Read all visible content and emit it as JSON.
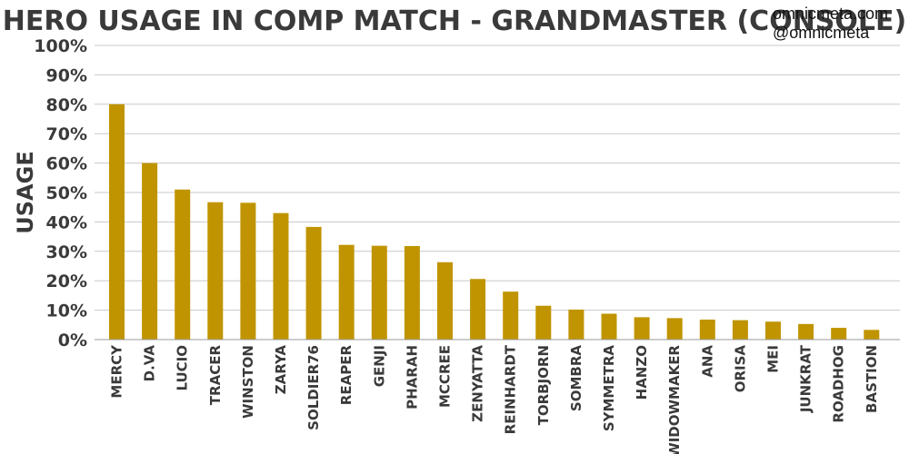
{
  "chart_data": {
    "type": "bar",
    "title": "HERO USAGE IN COMP MATCH - GRANDMASTER (CONSOLE)",
    "xlabel": "",
    "ylabel": "USAGE",
    "ylim": [
      0,
      100
    ],
    "yticks": [
      "0%",
      "10%",
      "20%",
      "30%",
      "40%",
      "50%",
      "60%",
      "70%",
      "80%",
      "90%",
      "100%"
    ],
    "categories": [
      "MERCY",
      "D.VA",
      "LUCIO",
      "TRACER",
      "WINSTON",
      "ZARYA",
      "SOLDIER76",
      "REAPER",
      "GENJI",
      "PHARAH",
      "MCCREE",
      "ZENYATTA",
      "REINHARDT",
      "TORBJORN",
      "SOMBRA",
      "SYMMETRA",
      "HANZO",
      "WIDOWMAKER",
      "ANA",
      "ORISA",
      "MEI",
      "JUNKRAT",
      "ROADHOG",
      "BASTION"
    ],
    "values": [
      80,
      60,
      51,
      46.7,
      46.5,
      43,
      38.3,
      32.2,
      31.9,
      31.8,
      26.3,
      20.6,
      16.3,
      11.5,
      10.2,
      8.8,
      7.6,
      7.3,
      6.8,
      6.6,
      6.1,
      5.3,
      4.0,
      3.3
    ],
    "bar_color": "#c09400",
    "grid": true,
    "legend": null
  },
  "watermark": {
    "site": "omnicmeta.com",
    "handle": "@omnicmeta"
  }
}
